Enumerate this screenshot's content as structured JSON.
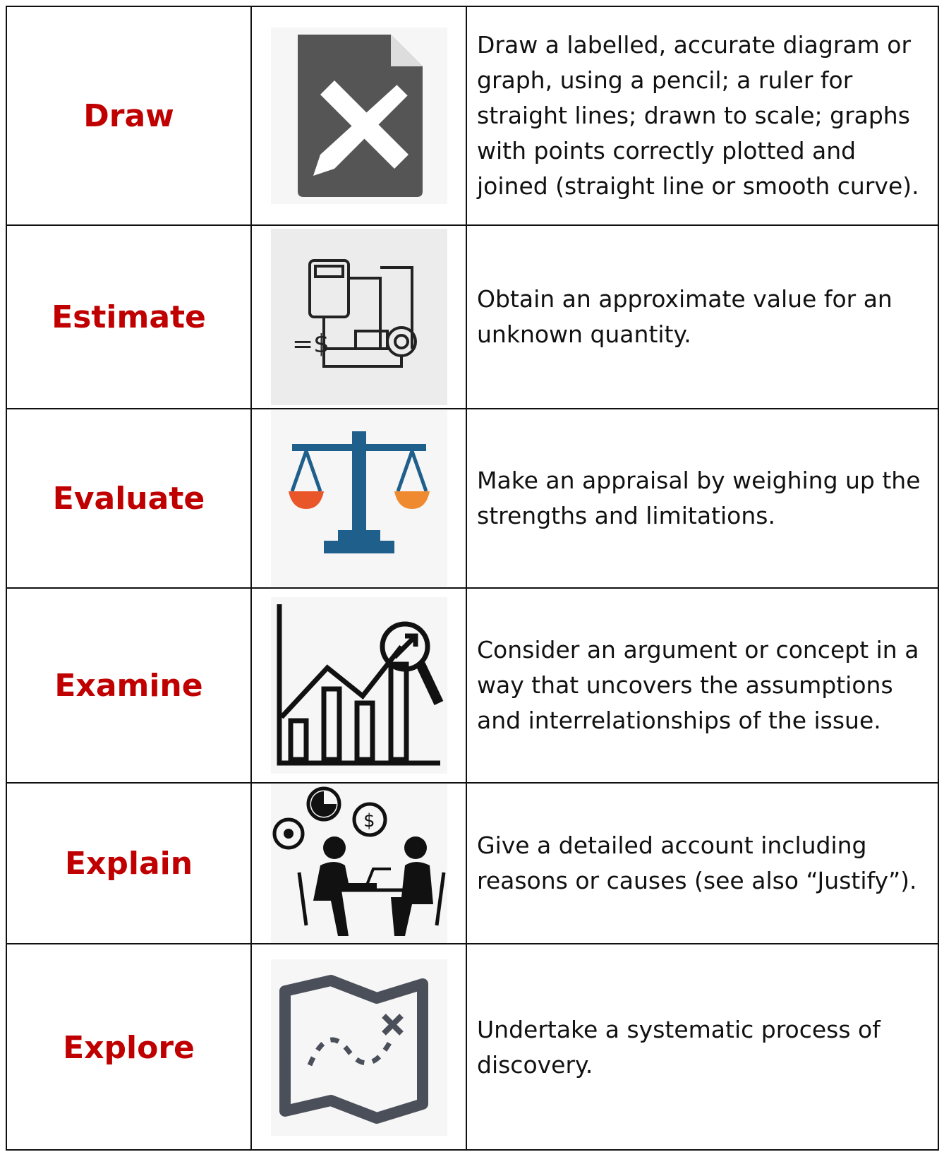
{
  "table": {
    "rows": [
      {
        "term": "Draw",
        "description": "Draw a labelled, accurate diagram or graph, using a pencil; a ruler for straight lines; drawn to scale; graphs with points correctly plotted and joined (straight line or smooth curve)."
      },
      {
        "term": "Estimate",
        "description": "Obtain an approximate value for an unknown quantity."
      },
      {
        "term": "Evaluate",
        "description": "Make an appraisal by weighing up the strengths and limitations."
      },
      {
        "term": "Examine",
        "description": "Consider an argument or concept in a way that uncovers the assumptions and interrelationships of the issue."
      },
      {
        "term": "Explain",
        "description": "Give a detailed account including reasons or causes (see also “Justify”)."
      },
      {
        "term": "Explore",
        "description": "Undertake a systematic process of discovery."
      }
    ]
  }
}
